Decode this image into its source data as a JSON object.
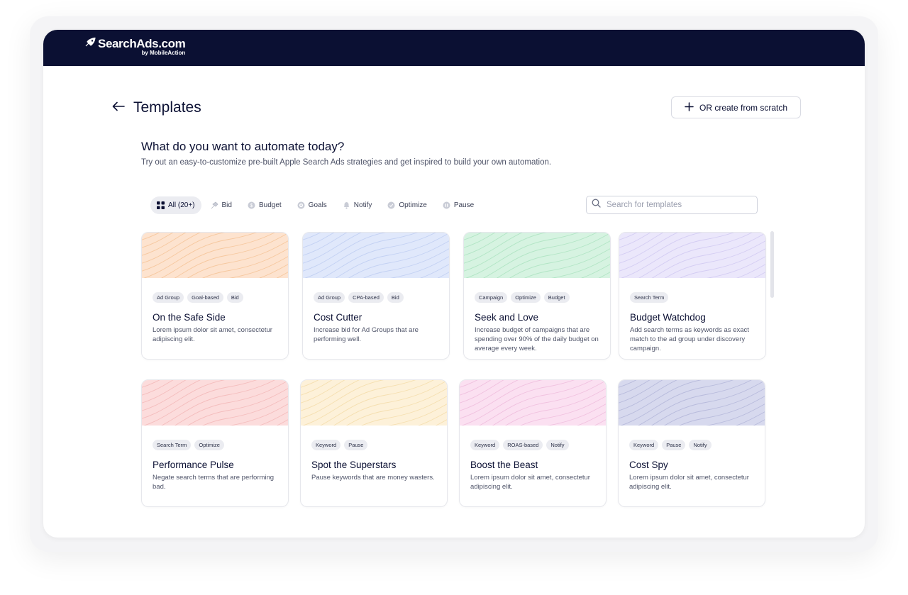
{
  "brand": {
    "name": "SearchAds.com",
    "byline": "by MobileAction"
  },
  "header": {
    "title": "Templates",
    "create_label": "OR create from scratch"
  },
  "intro": {
    "headline": "What do you want to automate today?",
    "subline": "Try out an easy-to-customize pre-built Apple Search Ads strategies and get inspired to build your own automation."
  },
  "filters": [
    {
      "label": "All (20+)",
      "icon": "grid-icon",
      "active": true
    },
    {
      "label": "Bid",
      "icon": "bid-icon",
      "active": false
    },
    {
      "label": "Budget",
      "icon": "budget-icon",
      "active": false
    },
    {
      "label": "Goals",
      "icon": "goals-icon",
      "active": false
    },
    {
      "label": "Notify",
      "icon": "bell-icon",
      "active": false
    },
    {
      "label": "Optimize",
      "icon": "optimize-icon",
      "active": false
    },
    {
      "label": "Pause",
      "icon": "pause-icon",
      "active": false
    }
  ],
  "search": {
    "placeholder": "Search for templates"
  },
  "templates": [
    {
      "title": "On the Safe Side",
      "description": "Lorem ipsum dolor sit amet, consectetur adipiscing elit.",
      "tags": [
        "Ad Group",
        "Goal-based",
        "Bid"
      ],
      "bg": "#fde3cf",
      "line": "#f6c89f"
    },
    {
      "title": "Cost Cutter",
      "description": "Increase bid for Ad Groups that are performing well.",
      "tags": [
        "Ad Group",
        "CPA-based",
        "Bid"
      ],
      "bg": "#e0e8fb",
      "line": "#c3d1f3"
    },
    {
      "title": "Seek and Love",
      "description": "Increase budget of campaigns that are spending over 90% of the daily budget on average every week.",
      "tags": [
        "Campaign",
        "Optimize",
        "Budget"
      ],
      "bg": "#d6f3e1",
      "line": "#b2e5c5"
    },
    {
      "title": "Budget Watchdog",
      "description": "Add search terms as keywords as exact match to the ad group under discovery campaign.",
      "tags": [
        "Search Term"
      ],
      "bg": "#ebe7fb",
      "line": "#d4cdf3"
    },
    {
      "title": "Performance Pulse",
      "description": "Negate search terms that are performing bad.",
      "tags": [
        "Search Term",
        "Optimize"
      ],
      "bg": "#fcdcdc",
      "line": "#f4bdbd"
    },
    {
      "title": "Spot the Superstars",
      "description": "Pause keywords that are money wasters.",
      "tags": [
        "Keyword",
        "Pause"
      ],
      "bg": "#fdf1d9",
      "line": "#f5dfb0"
    },
    {
      "title": "Boost the Beast",
      "description": "Lorem ipsum dolor sit amet, consectetur adipiscing elit.",
      "tags": [
        "Keyword",
        "ROAS-based",
        "Notify"
      ],
      "bg": "#fbe0f1",
      "line": "#f0c1df"
    },
    {
      "title": "Cost Spy",
      "description": "Lorem ipsum dolor sit amet, consectetur adipiscing elit.",
      "tags": [
        "Keyword",
        "Pause",
        "Notify"
      ],
      "bg": "#d7d9ee",
      "line": "#b8bbdc"
    }
  ]
}
